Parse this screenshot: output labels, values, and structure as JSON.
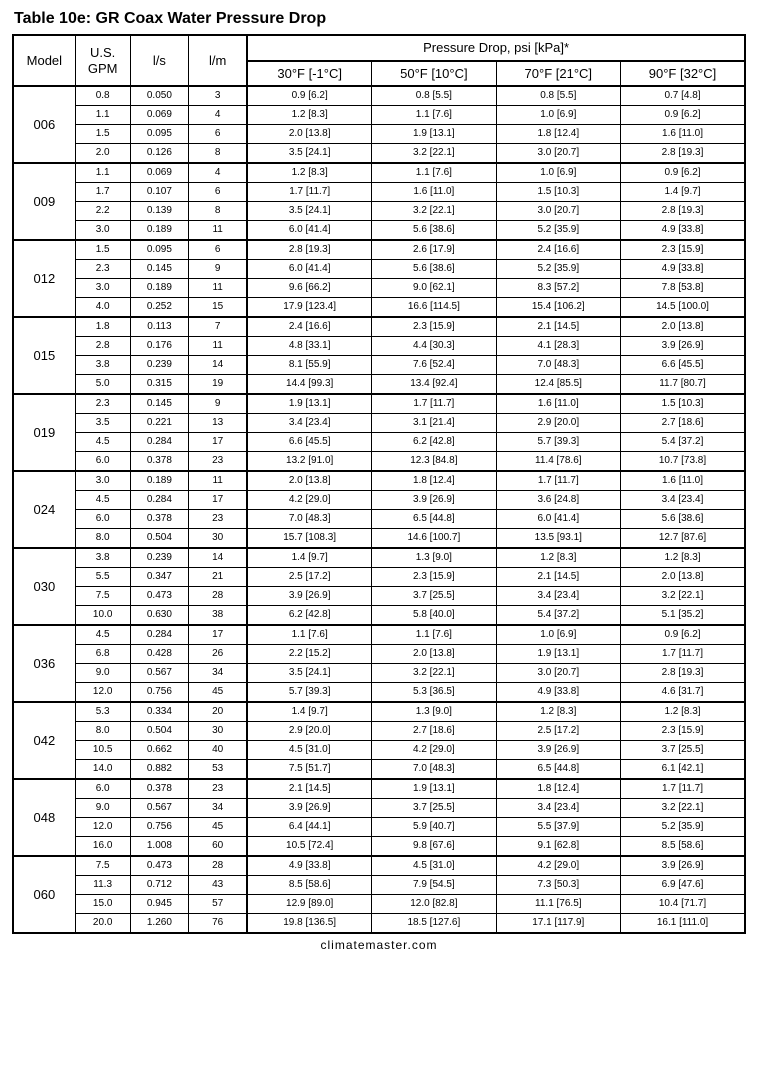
{
  "title": "Table 10e: GR Coax Water Pressure Drop",
  "footer": "climatemaster.com",
  "headers": {
    "model": "Model",
    "gpm": "U.S. GPM",
    "ls": "l/s",
    "lm": "l/m",
    "pd_group": "Pressure Drop, psi [kPa]*",
    "t30": "30°F [-1°C]",
    "t50": "50°F [10°C]",
    "t70": "70°F [21°C]",
    "t90": "90°F [32°C]"
  },
  "groups": [
    {
      "model": "006",
      "rows": [
        {
          "gpm": "0.8",
          "ls": "0.050",
          "lm": "3",
          "p": [
            "0.9 [6.2]",
            "0.8 [5.5]",
            "0.8 [5.5]",
            "0.7 [4.8]"
          ]
        },
        {
          "gpm": "1.1",
          "ls": "0.069",
          "lm": "4",
          "p": [
            "1.2 [8.3]",
            "1.1 [7.6]",
            "1.0 [6.9]",
            "0.9 [6.2]"
          ]
        },
        {
          "gpm": "1.5",
          "ls": "0.095",
          "lm": "6",
          "p": [
            "2.0 [13.8]",
            "1.9 [13.1]",
            "1.8 [12.4]",
            "1.6 [11.0]"
          ]
        },
        {
          "gpm": "2.0",
          "ls": "0.126",
          "lm": "8",
          "p": [
            "3.5 [24.1]",
            "3.2 [22.1]",
            "3.0 [20.7]",
            "2.8 [19.3]"
          ]
        }
      ]
    },
    {
      "model": "009",
      "rows": [
        {
          "gpm": "1.1",
          "ls": "0.069",
          "lm": "4",
          "p": [
            "1.2 [8.3]",
            "1.1 [7.6]",
            "1.0 [6.9]",
            "0.9 [6.2]"
          ]
        },
        {
          "gpm": "1.7",
          "ls": "0.107",
          "lm": "6",
          "p": [
            "1.7 [11.7]",
            "1.6 [11.0]",
            "1.5 [10.3]",
            "1.4 [9.7]"
          ]
        },
        {
          "gpm": "2.2",
          "ls": "0.139",
          "lm": "8",
          "p": [
            "3.5 [24.1]",
            "3.2 [22.1]",
            "3.0 [20.7]",
            "2.8 [19.3]"
          ]
        },
        {
          "gpm": "3.0",
          "ls": "0.189",
          "lm": "11",
          "p": [
            "6.0 [41.4]",
            "5.6 [38.6]",
            "5.2 [35.9]",
            "4.9 [33.8]"
          ]
        }
      ]
    },
    {
      "model": "012",
      "rows": [
        {
          "gpm": "1.5",
          "ls": "0.095",
          "lm": "6",
          "p": [
            "2.8 [19.3]",
            "2.6 [17.9]",
            "2.4 [16.6]",
            "2.3 [15.9]"
          ]
        },
        {
          "gpm": "2.3",
          "ls": "0.145",
          "lm": "9",
          "p": [
            "6.0 [41.4]",
            "5.6 [38.6]",
            "5.2 [35.9]",
            "4.9 [33.8]"
          ]
        },
        {
          "gpm": "3.0",
          "ls": "0.189",
          "lm": "11",
          "p": [
            "9.6 [66.2]",
            "9.0 [62.1]",
            "8.3 [57.2]",
            "7.8 [53.8]"
          ]
        },
        {
          "gpm": "4.0",
          "ls": "0.252",
          "lm": "15",
          "p": [
            "17.9 [123.4]",
            "16.6 [114.5]",
            "15.4 [106.2]",
            "14.5 [100.0]"
          ]
        }
      ]
    },
    {
      "model": "015",
      "rows": [
        {
          "gpm": "1.8",
          "ls": "0.113",
          "lm": "7",
          "p": [
            "2.4 [16.6]",
            "2.3 [15.9]",
            "2.1 [14.5]",
            "2.0 [13.8]"
          ]
        },
        {
          "gpm": "2.8",
          "ls": "0.176",
          "lm": "11",
          "p": [
            "4.8 [33.1]",
            "4.4 [30.3]",
            "4.1 [28.3]",
            "3.9 [26.9]"
          ]
        },
        {
          "gpm": "3.8",
          "ls": "0.239",
          "lm": "14",
          "p": [
            "8.1 [55.9]",
            "7.6 [52.4]",
            "7.0 [48.3]",
            "6.6 [45.5]"
          ]
        },
        {
          "gpm": "5.0",
          "ls": "0.315",
          "lm": "19",
          "p": [
            "14.4 [99.3]",
            "13.4 [92.4]",
            "12.4 [85.5]",
            "11.7 [80.7]"
          ]
        }
      ]
    },
    {
      "model": "019",
      "rows": [
        {
          "gpm": "2.3",
          "ls": "0.145",
          "lm": "9",
          "p": [
            "1.9 [13.1]",
            "1.7 [11.7]",
            "1.6 [11.0]",
            "1.5 [10.3]"
          ]
        },
        {
          "gpm": "3.5",
          "ls": "0.221",
          "lm": "13",
          "p": [
            "3.4 [23.4]",
            "3.1 [21.4]",
            "2.9 [20.0]",
            "2.7 [18.6]"
          ]
        },
        {
          "gpm": "4.5",
          "ls": "0.284",
          "lm": "17",
          "p": [
            "6.6 [45.5]",
            "6.2 [42.8]",
            "5.7 [39.3]",
            "5.4 [37.2]"
          ]
        },
        {
          "gpm": "6.0",
          "ls": "0.378",
          "lm": "23",
          "p": [
            "13.2 [91.0]",
            "12.3 [84.8]",
            "11.4 [78.6]",
            "10.7 [73.8]"
          ]
        }
      ]
    },
    {
      "model": "024",
      "rows": [
        {
          "gpm": "3.0",
          "ls": "0.189",
          "lm": "11",
          "p": [
            "2.0 [13.8]",
            "1.8 [12.4]",
            "1.7 [11.7]",
            "1.6 [11.0]"
          ]
        },
        {
          "gpm": "4.5",
          "ls": "0.284",
          "lm": "17",
          "p": [
            "4.2 [29.0]",
            "3.9 [26.9]",
            "3.6 [24.8]",
            "3.4 [23.4]"
          ]
        },
        {
          "gpm": "6.0",
          "ls": "0.378",
          "lm": "23",
          "p": [
            "7.0 [48.3]",
            "6.5 [44.8]",
            "6.0 [41.4]",
            "5.6 [38.6]"
          ]
        },
        {
          "gpm": "8.0",
          "ls": "0.504",
          "lm": "30",
          "p": [
            "15.7 [108.3]",
            "14.6 [100.7]",
            "13.5 [93.1]",
            "12.7 [87.6]"
          ]
        }
      ]
    },
    {
      "model": "030",
      "rows": [
        {
          "gpm": "3.8",
          "ls": "0.239",
          "lm": "14",
          "p": [
            "1.4 [9.7]",
            "1.3 [9.0]",
            "1.2 [8.3]",
            "1.2 [8.3]"
          ]
        },
        {
          "gpm": "5.5",
          "ls": "0.347",
          "lm": "21",
          "p": [
            "2.5 [17.2]",
            "2.3 [15.9]",
            "2.1 [14.5]",
            "2.0 [13.8]"
          ]
        },
        {
          "gpm": "7.5",
          "ls": "0.473",
          "lm": "28",
          "p": [
            "3.9 [26.9]",
            "3.7 [25.5]",
            "3.4 [23.4]",
            "3.2 [22.1]"
          ]
        },
        {
          "gpm": "10.0",
          "ls": "0.630",
          "lm": "38",
          "p": [
            "6.2 [42.8]",
            "5.8 [40.0]",
            "5.4 [37.2]",
            "5.1 [35.2]"
          ]
        }
      ]
    },
    {
      "model": "036",
      "rows": [
        {
          "gpm": "4.5",
          "ls": "0.284",
          "lm": "17",
          "p": [
            "1.1 [7.6]",
            "1.1 [7.6]",
            "1.0 [6.9]",
            "0.9 [6.2]"
          ]
        },
        {
          "gpm": "6.8",
          "ls": "0.428",
          "lm": "26",
          "p": [
            "2.2 [15.2]",
            "2.0 [13.8]",
            "1.9 [13.1]",
            "1.7 [11.7]"
          ]
        },
        {
          "gpm": "9.0",
          "ls": "0.567",
          "lm": "34",
          "p": [
            "3.5 [24.1]",
            "3.2 [22.1]",
            "3.0 [20.7]",
            "2.8 [19.3]"
          ]
        },
        {
          "gpm": "12.0",
          "ls": "0.756",
          "lm": "45",
          "p": [
            "5.7 [39.3]",
            "5.3 [36.5]",
            "4.9 [33.8]",
            "4.6 [31.7]"
          ]
        }
      ]
    },
    {
      "model": "042",
      "rows": [
        {
          "gpm": "5.3",
          "ls": "0.334",
          "lm": "20",
          "p": [
            "1.4 [9.7]",
            "1.3 [9.0]",
            "1.2 [8.3]",
            "1.2 [8.3]"
          ]
        },
        {
          "gpm": "8.0",
          "ls": "0.504",
          "lm": "30",
          "p": [
            "2.9 [20.0]",
            "2.7 [18.6]",
            "2.5 [17.2]",
            "2.3 [15.9]"
          ]
        },
        {
          "gpm": "10.5",
          "ls": "0.662",
          "lm": "40",
          "p": [
            "4.5 [31.0]",
            "4.2 [29.0]",
            "3.9 [26.9]",
            "3.7 [25.5]"
          ]
        },
        {
          "gpm": "14.0",
          "ls": "0.882",
          "lm": "53",
          "p": [
            "7.5 [51.7]",
            "7.0 [48.3]",
            "6.5 [44.8]",
            "6.1 [42.1]"
          ]
        }
      ]
    },
    {
      "model": "048",
      "rows": [
        {
          "gpm": "6.0",
          "ls": "0.378",
          "lm": "23",
          "p": [
            "2.1 [14.5]",
            "1.9 [13.1]",
            "1.8 [12.4]",
            "1.7 [11.7]"
          ]
        },
        {
          "gpm": "9.0",
          "ls": "0.567",
          "lm": "34",
          "p": [
            "3.9 [26.9]",
            "3.7 [25.5]",
            "3.4 [23.4]",
            "3.2 [22.1]"
          ]
        },
        {
          "gpm": "12.0",
          "ls": "0.756",
          "lm": "45",
          "p": [
            "6.4 [44.1]",
            "5.9 [40.7]",
            "5.5 [37.9]",
            "5.2 [35.9]"
          ]
        },
        {
          "gpm": "16.0",
          "ls": "1.008",
          "lm": "60",
          "p": [
            "10.5 [72.4]",
            "9.8 [67.6]",
            "9.1 [62.8]",
            "8.5 [58.6]"
          ]
        }
      ]
    },
    {
      "model": "060",
      "rows": [
        {
          "gpm": "7.5",
          "ls": "0.473",
          "lm": "28",
          "p": [
            "4.9 [33.8]",
            "4.5 [31.0]",
            "4.2 [29.0]",
            "3.9 [26.9]"
          ]
        },
        {
          "gpm": "11.3",
          "ls": "0.712",
          "lm": "43",
          "p": [
            "8.5 [58.6]",
            "7.9 [54.5]",
            "7.3 [50.3]",
            "6.9 [47.6]"
          ]
        },
        {
          "gpm": "15.0",
          "ls": "0.945",
          "lm": "57",
          "p": [
            "12.9 [89.0]",
            "12.0 [82.8]",
            "11.1 [76.5]",
            "10.4 [71.7]"
          ]
        },
        {
          "gpm": "20.0",
          "ls": "1.260",
          "lm": "76",
          "p": [
            "19.8 [136.5]",
            "18.5 [127.6]",
            "17.1 [117.9]",
            "16.1 [111.0]"
          ]
        }
      ]
    }
  ]
}
